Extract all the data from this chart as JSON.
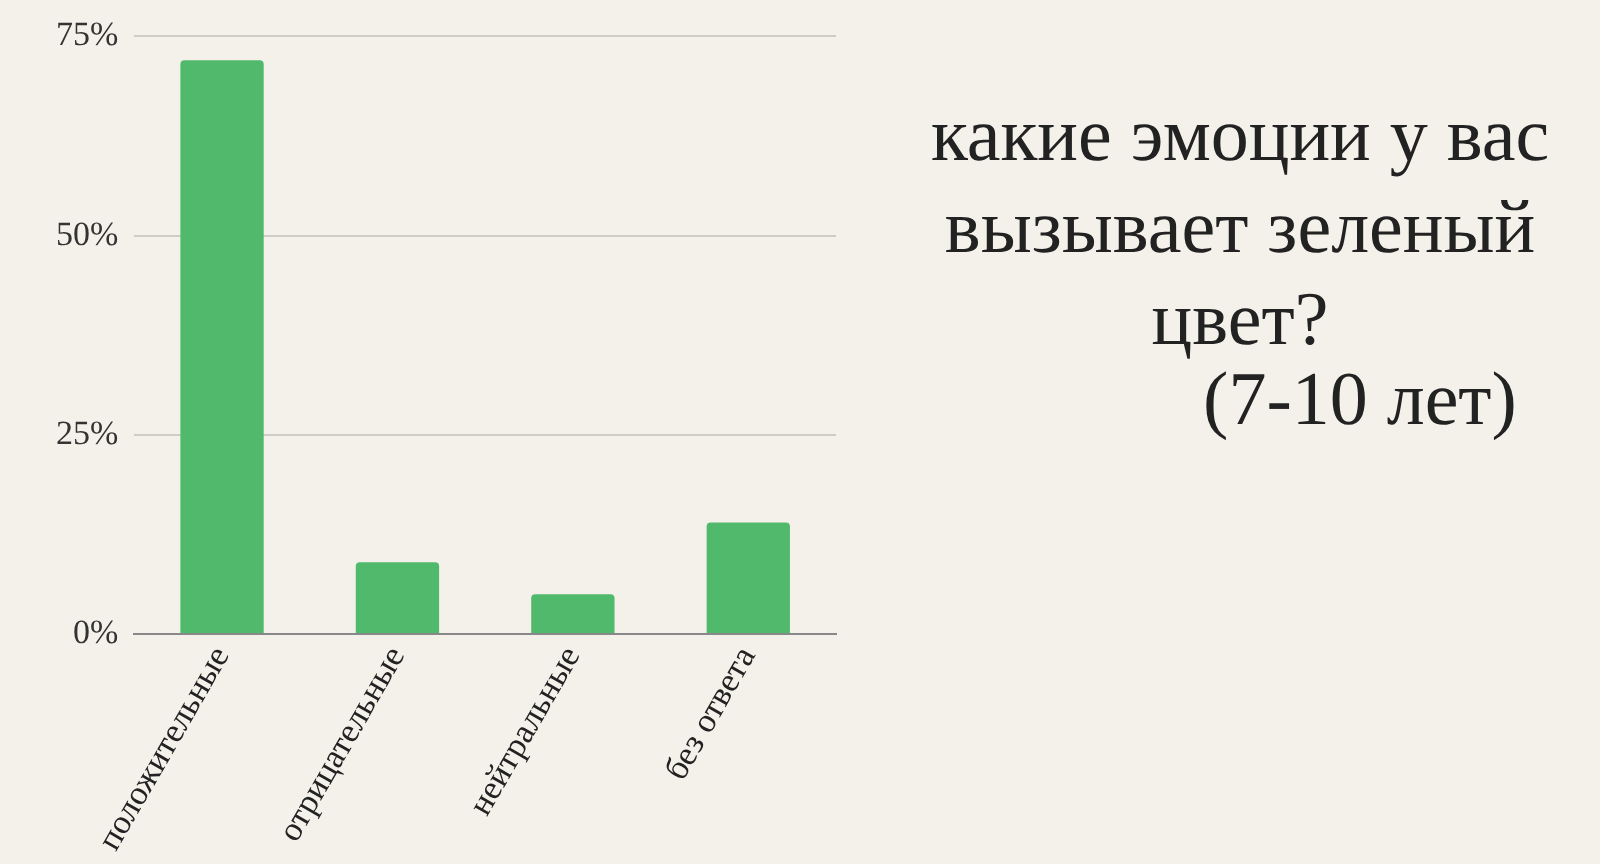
{
  "chart_data": {
    "type": "bar",
    "title": "какие эмоции у вас вызывает зеленый цвет?",
    "subtitle": "(7-10 лет)",
    "categories": [
      "положительные",
      "отрицательные",
      "нейтральные",
      "без ответа"
    ],
    "values": [
      72,
      9,
      5,
      14
    ],
    "color": "#51b96b",
    "ylim": [
      0,
      75
    ],
    "yticks": [
      {
        "value": 0,
        "label": "0%"
      },
      {
        "value": 25,
        "label": "25%"
      },
      {
        "value": 50,
        "label": "50%"
      },
      {
        "value": 75,
        "label": "75%"
      }
    ],
    "grid": "y"
  }
}
